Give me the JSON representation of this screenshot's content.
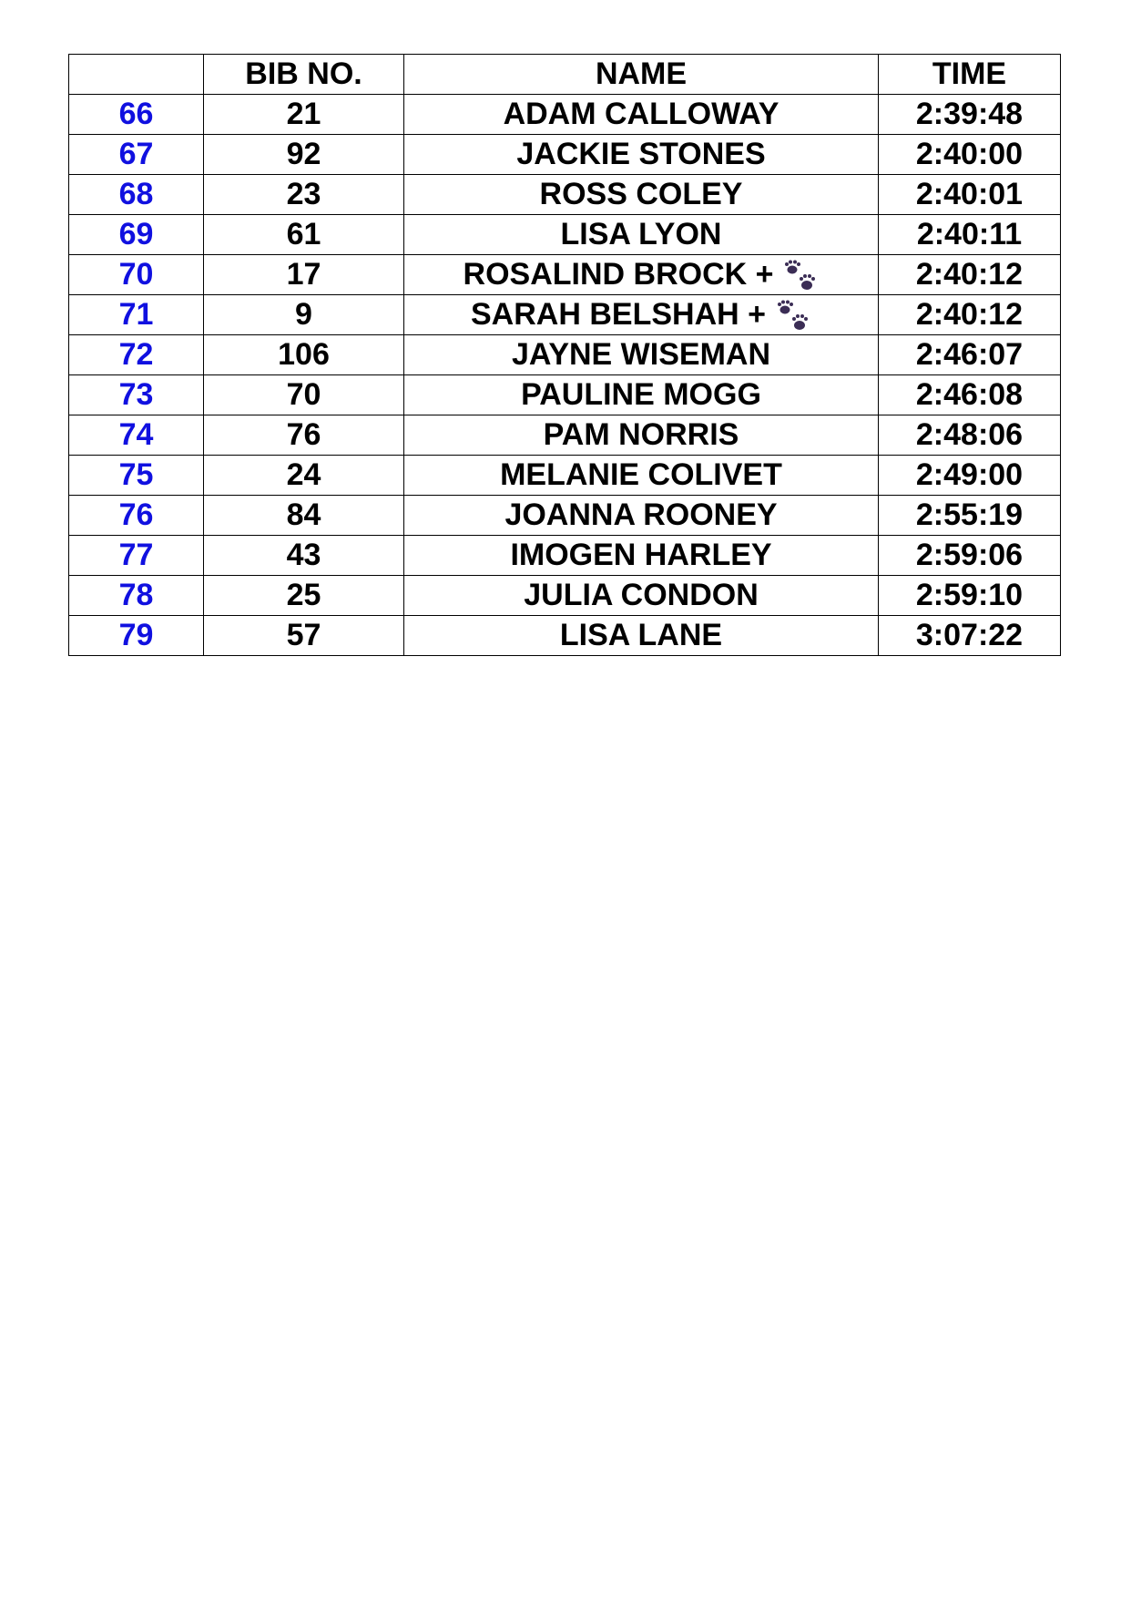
{
  "headers": {
    "pos": "",
    "bib": "BIB NO.",
    "name": "NAME",
    "time": "TIME"
  },
  "colors": {
    "position": "#1010e0",
    "paw": "#3b2d55"
  },
  "rows": [
    {
      "pos": "66",
      "bib": "21",
      "name": "ADAM CALLOWAY",
      "time": "2:39:48"
    },
    {
      "pos": "67",
      "bib": "92",
      "name": "JACKIE STONES",
      "time": "2:40:00"
    },
    {
      "pos": "68",
      "bib": "23",
      "name": "ROSS COLEY",
      "time": "2:40:01"
    },
    {
      "pos": "69",
      "bib": "61",
      "name": "LISA LYON",
      "time": "2:40:11"
    },
    {
      "pos": "70",
      "bib": "17",
      "name": "ROSALIND BROCK +",
      "time": "2:40:12",
      "icon": "paw-prints-icon"
    },
    {
      "pos": "71",
      "bib": "9",
      "name": "SARAH BELSHAH +",
      "time": "2:40:12",
      "icon": "paw-prints-icon"
    },
    {
      "pos": "72",
      "bib": "106",
      "name": "JAYNE WISEMAN",
      "time": "2:46:07"
    },
    {
      "pos": "73",
      "bib": "70",
      "name": "PAULINE MOGG",
      "time": "2:46:08"
    },
    {
      "pos": "74",
      "bib": "76",
      "name": "PAM NORRIS",
      "time": "2:48:06"
    },
    {
      "pos": "75",
      "bib": "24",
      "name": "MELANIE COLIVET",
      "time": "2:49:00"
    },
    {
      "pos": "76",
      "bib": "84",
      "name": "JOANNA ROONEY",
      "time": "2:55:19"
    },
    {
      "pos": "77",
      "bib": "43",
      "name": "IMOGEN HARLEY",
      "time": "2:59:06"
    },
    {
      "pos": "78",
      "bib": "25",
      "name": "JULIA CONDON",
      "time": "2:59:10"
    },
    {
      "pos": "79",
      "bib": "57",
      "name": "LISA LANE",
      "time": "3:07:22"
    }
  ]
}
